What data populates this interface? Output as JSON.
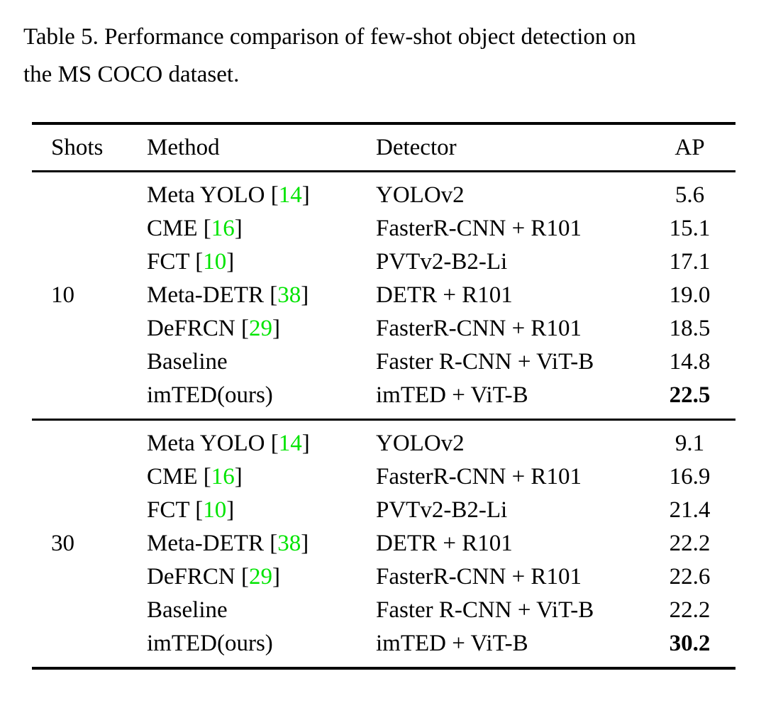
{
  "page": {
    "background": "#ffffff",
    "text_color": "#000000"
  },
  "caption": {
    "lines": [
      "Table 5. Performance comparison of few-shot object detection on",
      "the MS COCO dataset."
    ]
  },
  "table": {
    "columns": [
      "Shots",
      "Method",
      "Detector",
      "AP"
    ],
    "cite_open": " [",
    "cite_close": "]",
    "citation_color": "#00E400",
    "rule_color": "#000000",
    "groups": [
      {
        "shots": "10",
        "rows": [
          {
            "method": "Meta YOLO",
            "citation": "14",
            "detector": "YOLOv2",
            "ap": "5.6",
            "ap_bold": false
          },
          {
            "method": "CME",
            "citation": "16",
            "detector": "FasterR-CNN + R101",
            "ap": "15.1",
            "ap_bold": false
          },
          {
            "method": "FCT",
            "citation": "10",
            "detector": "PVTv2-B2-Li",
            "ap": "17.1",
            "ap_bold": false
          },
          {
            "method": "Meta-DETR",
            "citation": "38",
            "detector": "DETR + R101",
            "ap": "19.0",
            "ap_bold": false
          },
          {
            "method": "DeFRCN",
            "citation": "29",
            "detector": "FasterR-CNN + R101",
            "ap": "18.5",
            "ap_bold": false
          },
          {
            "method": "Baseline",
            "citation": null,
            "detector": "Faster R-CNN + ViT-B",
            "ap": "14.8",
            "ap_bold": false
          },
          {
            "method": "imTED(ours)",
            "citation": null,
            "detector": "imTED + ViT-B",
            "ap": "22.5",
            "ap_bold": true
          }
        ]
      },
      {
        "shots": "30",
        "rows": [
          {
            "method": "Meta YOLO",
            "citation": "14",
            "detector": "YOLOv2",
            "ap": "9.1",
            "ap_bold": false
          },
          {
            "method": "CME",
            "citation": "16",
            "detector": "FasterR-CNN + R101",
            "ap": "16.9",
            "ap_bold": false
          },
          {
            "method": "FCT",
            "citation": "10",
            "detector": "PVTv2-B2-Li",
            "ap": "21.4",
            "ap_bold": false
          },
          {
            "method": "Meta-DETR",
            "citation": "38",
            "detector": "DETR + R101",
            "ap": "22.2",
            "ap_bold": false
          },
          {
            "method": "DeFRCN",
            "citation": "29",
            "detector": "FasterR-CNN + R101",
            "ap": "22.6",
            "ap_bold": false
          },
          {
            "method": "Baseline",
            "citation": null,
            "detector": "Faster R-CNN + ViT-B",
            "ap": "22.2",
            "ap_bold": false
          },
          {
            "method": "imTED(ours)",
            "citation": null,
            "detector": "imTED + ViT-B",
            "ap": "30.2",
            "ap_bold": true
          }
        ]
      }
    ]
  }
}
